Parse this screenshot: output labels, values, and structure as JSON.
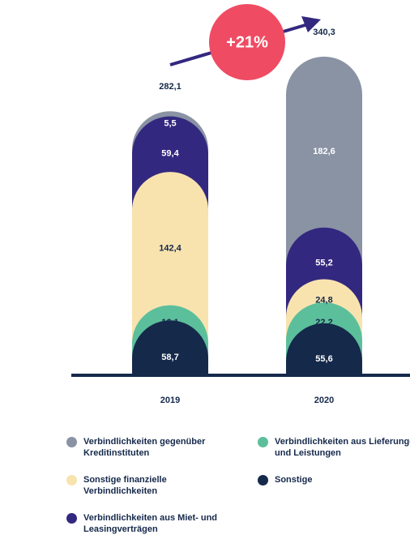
{
  "chart_data": {
    "type": "stacked_bar",
    "categories": [
      "2019",
      "2020"
    ],
    "series": [
      {
        "name": "Sonstige",
        "color": "#15294b",
        "label_color": "#ffffff",
        "values": [
          58.7,
          55.6
        ],
        "value_labels": [
          "58,7",
          "55,6"
        ]
      },
      {
        "name": "Verbindlichkeiten aus Lieferungen und Leistungen",
        "color": "#5cbf9b",
        "label_color": "#15294b",
        "values": [
          16.1,
          22.2
        ],
        "value_labels": [
          "16,1",
          "22,2"
        ]
      },
      {
        "name": "Sonstige finanzielle Verbindlichkeiten",
        "color": "#f8e3af",
        "label_color": "#15294b",
        "values": [
          142.4,
          24.8
        ],
        "value_labels": [
          "142,4",
          "24,8"
        ]
      },
      {
        "name": "Verbindlichkeiten aus Miet- und Leasingverträgen",
        "color": "#33287f",
        "label_color": "#ffffff",
        "values": [
          59.4,
          55.2
        ],
        "value_labels": [
          "59,4",
          "55,2"
        ]
      },
      {
        "name": "Verbindlichkeiten gegenüber Kreditinstituten",
        "color": "#8a93a4",
        "label_color": "#ffffff",
        "values": [
          5.5,
          182.6
        ],
        "value_labels": [
          "5,5",
          "182,6"
        ]
      }
    ],
    "totals": [
      282.1,
      340.3
    ],
    "total_labels": [
      "282,1",
      "340,3"
    ],
    "growth_label": "+21%"
  }
}
